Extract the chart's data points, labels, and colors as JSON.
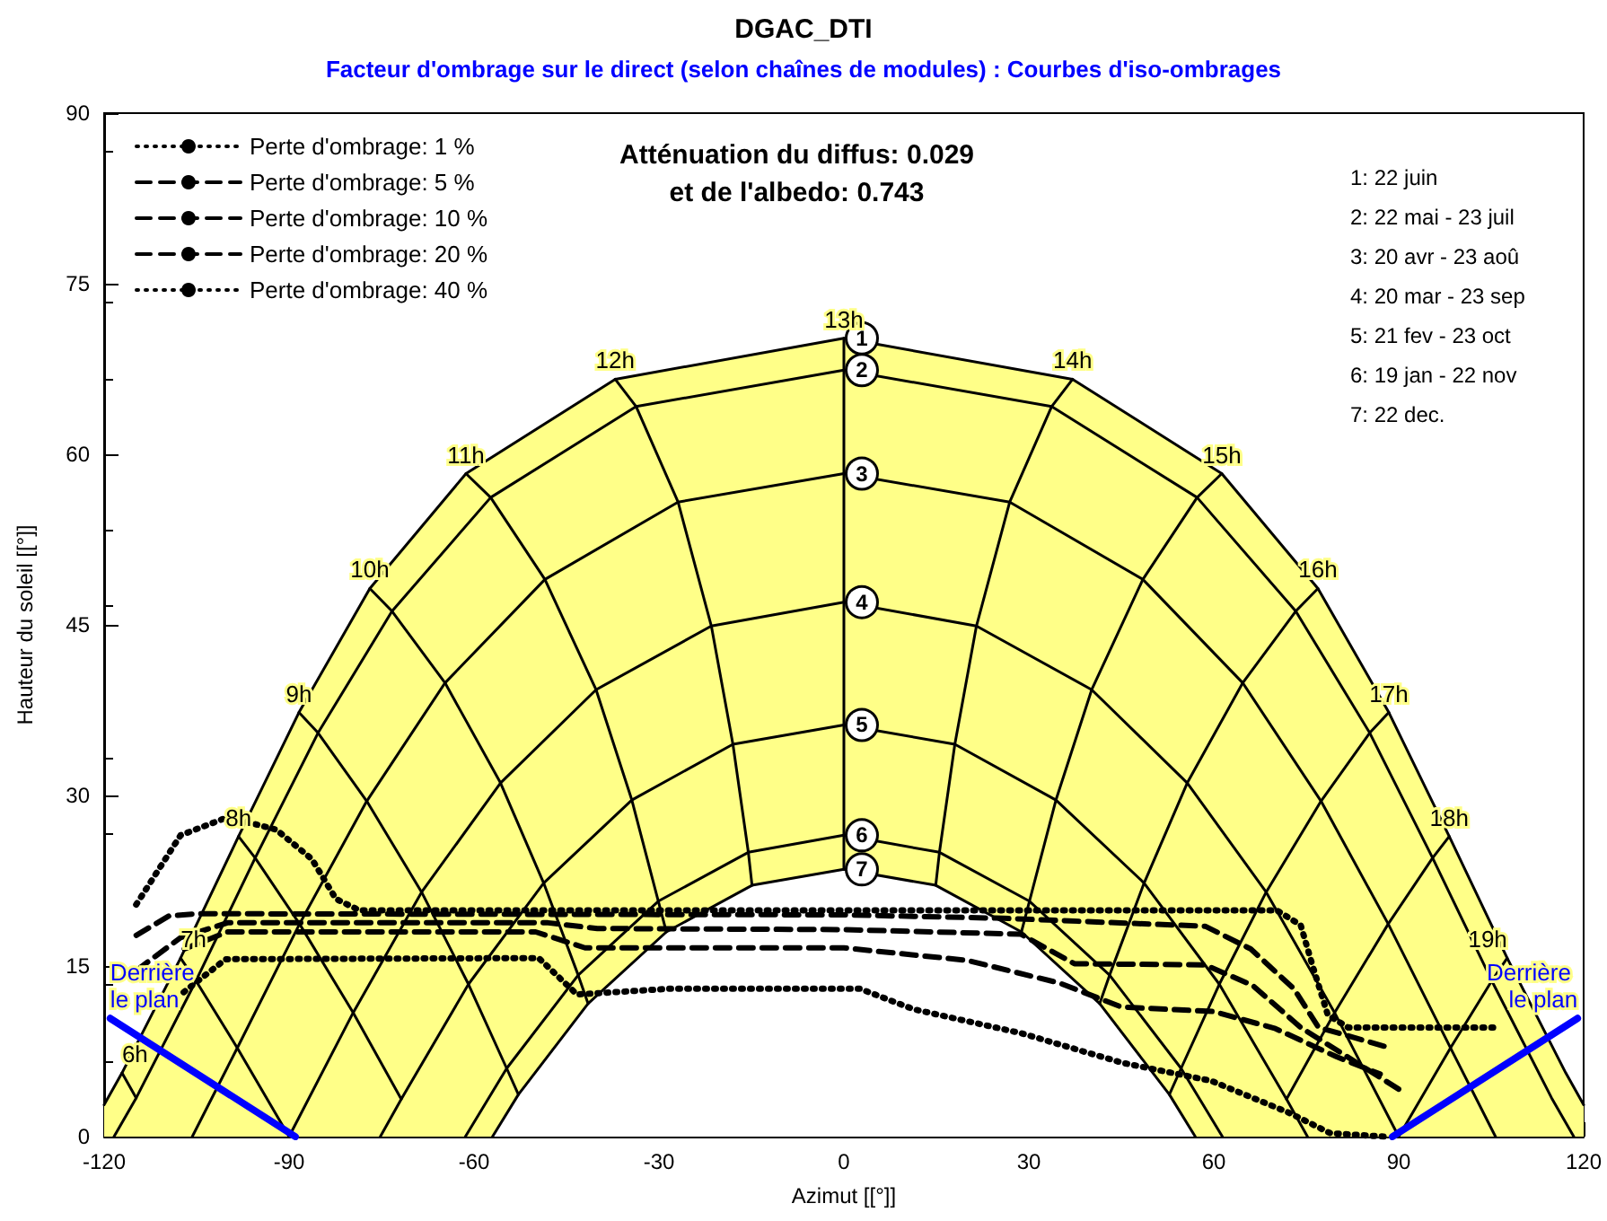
{
  "chart_data": {
    "type": "line",
    "title": "DGAC_DTI",
    "subtitle": "Facteur d'ombrage sur le direct (selon chaînes de modules) : Courbes d'iso-ombrages",
    "xlabel": "Azimut [[°]]",
    "ylabel": "Hauteur du soleil [[°]]",
    "annotations": [
      "Atténuation du diffus: 0.029\net de l'albedo: 0.743",
      "1: 22 juin\n2: 22 mai - 23 juil\n3: 20 avr - 23 aoû\n4: 20 mar - 23 sep\n5: 21 fev - 23 oct\n6: 19 jan - 22 nov\n7: 22 dec."
    ],
    "xlim": [
      -120,
      120
    ],
    "xticks": [
      -120,
      -90,
      -60,
      -30,
      0,
      30,
      60,
      90,
      120
    ],
    "ylim": [
      0,
      90
    ],
    "yticks": [
      0,
      15,
      30,
      45,
      60,
      75,
      90
    ],
    "grid": false,
    "legend": "top left",
    "series": [
      {
        "name": "1",
        "type": "area",
        "color": "#000000",
        "x": [
          -120,
          -117.1,
          -107.6,
          -98.2,
          -88.4,
          -76.9,
          -61.3,
          -37.1,
          0,
          37.1,
          61.3,
          76.9,
          88.4,
          98.2,
          107.6,
          117.1,
          120
        ],
        "values": [
          2.8,
          5.6,
          15.7,
          26.4,
          37.3,
          48.2,
          58.3,
          66.6,
          70.2,
          66.6,
          58.3,
          48.2,
          37.3,
          26.4,
          15.7,
          5.6,
          2.8
        ]
      },
      {
        "name": "2",
        "color": "#000000",
        "x": [
          -118.4,
          -114.8,
          -105.1,
          -95.5,
          -85.3,
          -73.3,
          -57.3,
          -33.7,
          0,
          33.7,
          57.3,
          73.3,
          85.3,
          95.5,
          105.1,
          114.8,
          118.4
        ],
        "values": [
          0,
          3.4,
          13.7,
          24.5,
          35.5,
          46.2,
          56.2,
          64.2,
          67.4,
          64.2,
          56.2,
          46.2,
          35.5,
          24.5,
          13.7,
          3.4,
          0
        ]
      },
      {
        "name": "3",
        "color": "#000000",
        "x": [
          -105.7,
          -98.4,
          -88.3,
          -77.4,
          -64.7,
          -48.5,
          -26.9,
          0,
          26.9,
          48.5,
          64.7,
          77.4,
          88.3,
          98.4,
          105.7
        ],
        "values": [
          0,
          7.8,
          18.7,
          29.5,
          39.9,
          49.0,
          55.8,
          58.3,
          55.8,
          49.0,
          39.9,
          29.5,
          18.7,
          7.8,
          0
        ]
      },
      {
        "name": "4",
        "color": "#000000",
        "x": [
          -90,
          -79.6,
          -68.5,
          -55.7,
          -40.2,
          -21.5,
          0,
          21.5,
          40.2,
          55.7,
          68.5,
          79.6,
          90
        ],
        "values": [
          0,
          10.9,
          21.5,
          31.1,
          39.3,
          44.9,
          47.0,
          44.9,
          39.3,
          31.1,
          21.5,
          10.9,
          0
        ]
      },
      {
        "name": "5",
        "color": "#000000",
        "x": [
          -75.2,
          -71.8,
          -60.9,
          -48.7,
          -34.4,
          -18.0,
          0,
          18.0,
          34.4,
          48.7,
          60.9,
          71.8,
          75.2
        ],
        "values": [
          0,
          3.3,
          13.4,
          22.3,
          29.6,
          34.5,
          36.2,
          34.5,
          29.6,
          22.3,
          13.4,
          3.3,
          0
        ]
      },
      {
        "name": "6",
        "color": "#000000",
        "x": [
          -61.4,
          -54.7,
          -43.1,
          -30.1,
          -15.5,
          0,
          15.5,
          30.1,
          43.1,
          54.7,
          61.4
        ],
        "values": [
          0,
          6.0,
          14.2,
          20.7,
          25.0,
          26.5,
          25.0,
          20.7,
          14.2,
          6.0,
          0
        ]
      },
      {
        "name": "7",
        "type": "area",
        "color": "#000000",
        "x": [
          -57,
          -52.8,
          -41.5,
          -28.8,
          -14.9,
          0,
          14.9,
          28.8,
          41.5,
          52.8,
          57
        ],
        "values": [
          0,
          3.7,
          11.7,
          18.0,
          22.1,
          23.5,
          22.1,
          18.0,
          11.7,
          3.7,
          0
        ]
      },
      {
        "name": "6h",
        "color": "#000000",
        "x": [
          -117.1,
          -114.8
        ],
        "values": [
          5.6,
          3.4
        ]
      },
      {
        "name": "7h",
        "color": "#000000",
        "x": [
          -107.6,
          -105.1,
          -98.4,
          -90
        ],
        "values": [
          15.7,
          13.7,
          7.8,
          0
        ]
      },
      {
        "name": "8h",
        "color": "#000000",
        "x": [
          -98.2,
          -95.5,
          -88.3,
          -79.6,
          -71.8
        ],
        "values": [
          26.4,
          24.5,
          18.7,
          10.9,
          3.3
        ]
      },
      {
        "name": "9h",
        "color": "#000000",
        "x": [
          -88.4,
          -85.3,
          -77.4,
          -68.5,
          -60.9,
          -54.7,
          -52.8
        ],
        "values": [
          37.3,
          35.5,
          29.5,
          21.5,
          13.4,
          6.0,
          3.7
        ]
      },
      {
        "name": "10h",
        "color": "#000000",
        "x": [
          -76.9,
          -73.3,
          -64.7,
          -55.7,
          -48.7,
          -43.1,
          -41.5
        ],
        "values": [
          48.2,
          46.2,
          39.9,
          31.1,
          22.3,
          14.2,
          11.7
        ]
      },
      {
        "name": "11h",
        "color": "#000000",
        "x": [
          -61.3,
          -57.3,
          -48.5,
          -40.2,
          -34.4,
          -30.1,
          -28.8
        ],
        "values": [
          58.3,
          56.2,
          49.0,
          39.3,
          29.6,
          20.7,
          18.0
        ]
      },
      {
        "name": "12h",
        "color": "#000000",
        "x": [
          -37.1,
          -33.7,
          -26.9,
          -21.5,
          -18.0,
          -15.5,
          -14.9
        ],
        "values": [
          66.6,
          64.2,
          55.8,
          44.9,
          34.5,
          25.0,
          22.1
        ]
      },
      {
        "name": "13h",
        "color": "#000000",
        "x": [
          0,
          0,
          0,
          0,
          0,
          0,
          0
        ],
        "values": [
          70.2,
          67.4,
          58.3,
          47.0,
          36.2,
          26.5,
          23.5
        ]
      },
      {
        "name": "14h",
        "color": "#000000",
        "x": [
          37.1,
          33.7,
          26.9,
          21.5,
          18.0,
          15.5,
          14.9
        ],
        "values": [
          66.6,
          64.2,
          55.8,
          44.9,
          34.5,
          25.0,
          22.1
        ]
      },
      {
        "name": "15h",
        "color": "#000000",
        "x": [
          61.3,
          57.3,
          48.5,
          40.2,
          34.4,
          30.1,
          28.8
        ],
        "values": [
          58.3,
          56.2,
          49.0,
          39.3,
          29.6,
          20.7,
          18.0
        ]
      },
      {
        "name": "16h",
        "color": "#000000",
        "x": [
          76.9,
          73.3,
          64.7,
          55.7,
          48.7,
          43.1,
          41.5
        ],
        "values": [
          48.2,
          46.2,
          39.9,
          31.1,
          22.3,
          14.2,
          11.7
        ]
      },
      {
        "name": "17h",
        "color": "#000000",
        "x": [
          88.4,
          85.3,
          77.4,
          68.5,
          60.9,
          54.7,
          52.8
        ],
        "values": [
          37.3,
          35.5,
          29.5,
          21.5,
          13.4,
          6.0,
          3.7
        ]
      },
      {
        "name": "18h",
        "color": "#000000",
        "x": [
          98.2,
          95.5,
          88.3,
          79.6,
          71.8
        ],
        "values": [
          26.4,
          24.5,
          18.7,
          10.9,
          3.3
        ]
      },
      {
        "name": "19h",
        "color": "#000000",
        "x": [
          107.6,
          105.1,
          98.4,
          90
        ],
        "values": [
          15.7,
          13.7,
          7.8,
          0
        ]
      },
      {
        "name": "Derrière le plan",
        "color": "#0000ff",
        "x": [
          -119,
          -89
        ],
        "values": [
          10.4,
          0
        ]
      },
      {
        "name": "Derrière le plan",
        "color": "#0000ff",
        "x": [
          89,
          119
        ],
        "values": [
          0,
          10.4
        ]
      },
      {
        "name": "Perte d'ombrage: 1 %",
        "color": "#000000",
        "line_style": "dotted",
        "x": [
          -114.8,
          -107.6,
          -99.9,
          -92.1,
          -86.3,
          -82.4,
          -78.6,
          0,
          70.2,
          74.1,
          76.1,
          78.5,
          81.8,
          106
        ],
        "values": [
          20.4,
          26.5,
          28.1,
          27.0,
          24.4,
          20.9,
          19.9,
          19.9,
          19.9,
          18.6,
          14.9,
          10.7,
          9.6,
          9.6
        ]
      },
      {
        "name": "Perte d'ombrage: 5 %",
        "color": "#000000",
        "line_style": "dashed",
        "x": [
          -114.8,
          -109.5,
          -105,
          0,
          25.8,
          58.6,
          66,
          73,
          77,
          88.6
        ],
        "values": [
          17.7,
          19.4,
          19.6,
          19.5,
          19.2,
          18.5,
          16.5,
          13,
          9.6,
          7.8
        ]
      },
      {
        "name": "Perte d'ombrage: 10 %",
        "color": "#000000",
        "line_style": "dashed",
        "x": [
          -114.8,
          -107.6,
          -100,
          -48,
          -40,
          0,
          28.7,
          37.4,
          58.6,
          66.3,
          74.1,
          90.5
        ],
        "values": [
          14.6,
          17.5,
          18.8,
          18.8,
          18.3,
          18.2,
          17.8,
          15.2,
          15.1,
          13.3,
          9.6,
          4.0
        ]
      },
      {
        "name": "Perte d'ombrage: 20 %",
        "color": "#000000",
        "line_style": "dashed",
        "x": [
          -107,
          -100,
          -50,
          -42,
          0,
          20,
          35,
          45,
          60,
          70,
          80,
          87
        ],
        "values": [
          16.5,
          18.0,
          18.0,
          16.6,
          16.6,
          15.5,
          13.5,
          11.4,
          11.0,
          9.5,
          7.0,
          5.5
        ]
      },
      {
        "name": "Perte d'ombrage: 40 %",
        "color": "#000000",
        "line_style": "dotted",
        "x": [
          -107.1,
          -100.3,
          -49.5,
          -43.3,
          -28.3,
          2.6,
          11.3,
          28.7,
          45.1,
          59.6,
          72.2,
          78.9,
          87.6
        ],
        "values": [
          12.7,
          15.6,
          15.7,
          12.5,
          13.0,
          13.0,
          11.2,
          9.1,
          6.5,
          4.9,
          2.1,
          0.3,
          0
        ]
      }
    ]
  }
}
